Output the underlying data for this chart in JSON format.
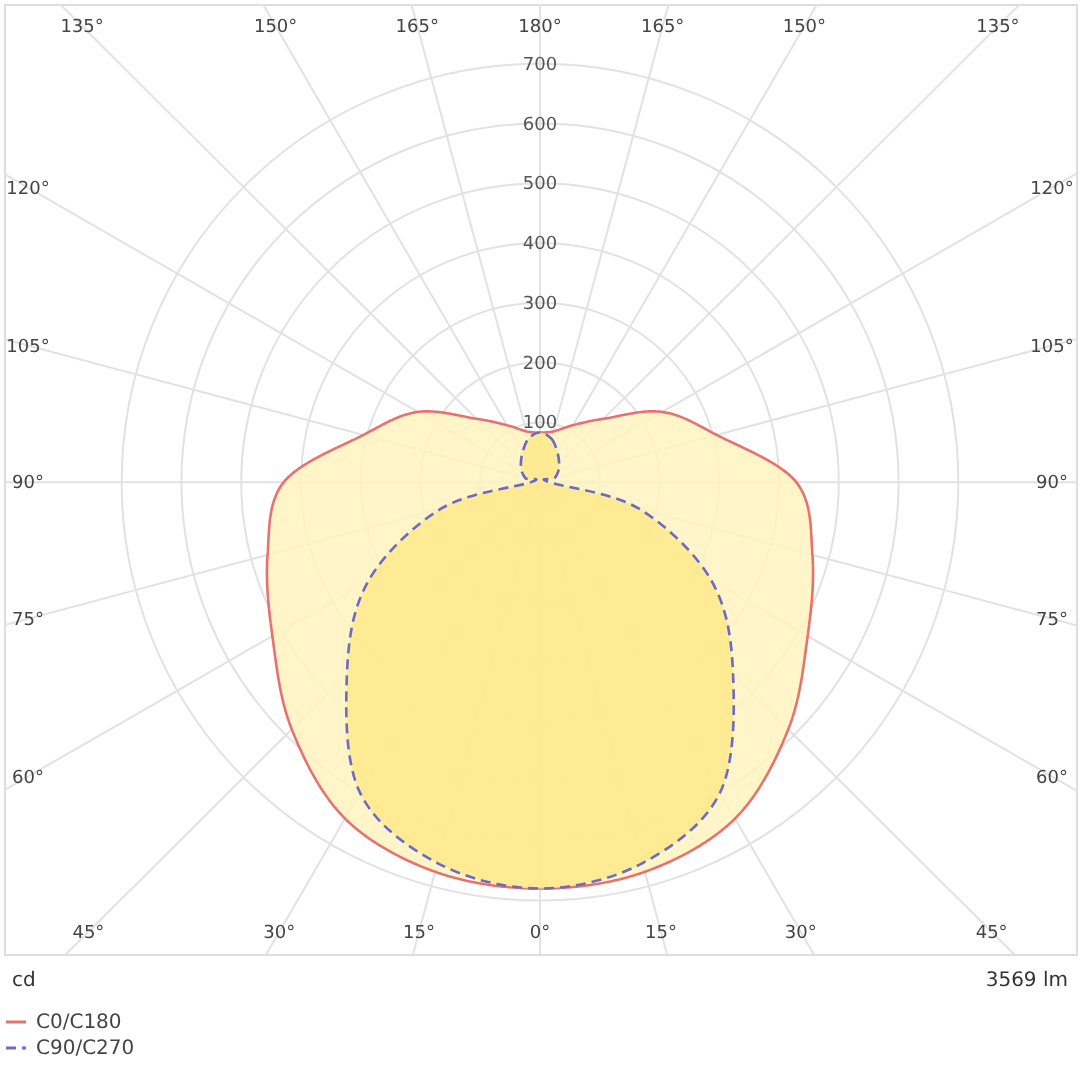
{
  "chart_data": {
    "type": "radar",
    "ylabel": "cd",
    "annotations": [
      "3569 lm"
    ],
    "categories": [
      "180°",
      "165°",
      "150°",
      "135°",
      "120°",
      "105°",
      "90°",
      "75°",
      "60°",
      "45°",
      "30°",
      "15°",
      "0°",
      "15°",
      "30°",
      "45°",
      "60°",
      "75°",
      "90°",
      "105°",
      "120°",
      "135°",
      "150°",
      "165°"
    ],
    "ylim": [
      0,
      700
    ],
    "yticks": [
      100,
      200,
      300,
      400,
      500,
      600,
      700
    ],
    "grid": true,
    "legend": "bottom left",
    "series": [
      {
        "name": "C0/C180",
        "color": "#e8716f",
        "line_style": "solid",
        "values": [
          83,
          88,
          110,
          150,
          235,
          305,
          427,
          470,
          515,
          585,
          650,
          675,
          680,
          675,
          650,
          585,
          515,
          470,
          427,
          305,
          235,
          150,
          110,
          88
        ]
      },
      {
        "name": "C90/C270",
        "color": "#6a6ac8",
        "line_style": "dashed",
        "values": [
          83,
          75,
          58,
          45,
          35,
          25,
          15,
          170,
          330,
          455,
          600,
          660,
          680,
          660,
          600,
          455,
          330,
          170,
          15,
          25,
          35,
          45,
          58,
          75
        ]
      }
    ]
  }
}
